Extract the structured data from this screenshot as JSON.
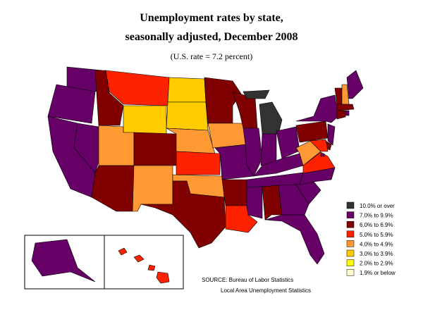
{
  "title_lines": [
    "Unemployment rates by state,",
    "seasonally adjusted, December 2008"
  ],
  "subtitle": "(U.S. rate = 7.2 percent)",
  "legend": [
    {
      "label": "10.0% or over",
      "color": "#333333"
    },
    {
      "label": "7.0% to 9.9%",
      "color": "#660066"
    },
    {
      "label": "6.0% to 6.9%",
      "color": "#800000"
    },
    {
      "label": "5.0% to 5.9%",
      "color": "#ff2200"
    },
    {
      "label": "4.0% to 4.9%",
      "color": "#ff9933"
    },
    {
      "label": "3.0% to 3.9%",
      "color": "#ffcc00"
    },
    {
      "label": "2.0% to 2.9%",
      "color": "#ffff00"
    },
    {
      "label": "1.9% or below",
      "color": "#ffffcc"
    }
  ],
  "regions": [
    1,
    1,
    1,
    1,
    2,
    3,
    5,
    4,
    2,
    2,
    4,
    5,
    5,
    4,
    3,
    4,
    2,
    2,
    4,
    1,
    2,
    3,
    2,
    1,
    0,
    0,
    1,
    1,
    1,
    1,
    1,
    2,
    1,
    1,
    1,
    1,
    3,
    4,
    2,
    1,
    1,
    2,
    3,
    1,
    2,
    4,
    1,
    2,
    2,
    1,
    1,
    3
  ],
  "source": [
    "SOURCE:  Bureau of Labor Statistics",
    "Local Area Unemployment Statistics"
  ]
}
